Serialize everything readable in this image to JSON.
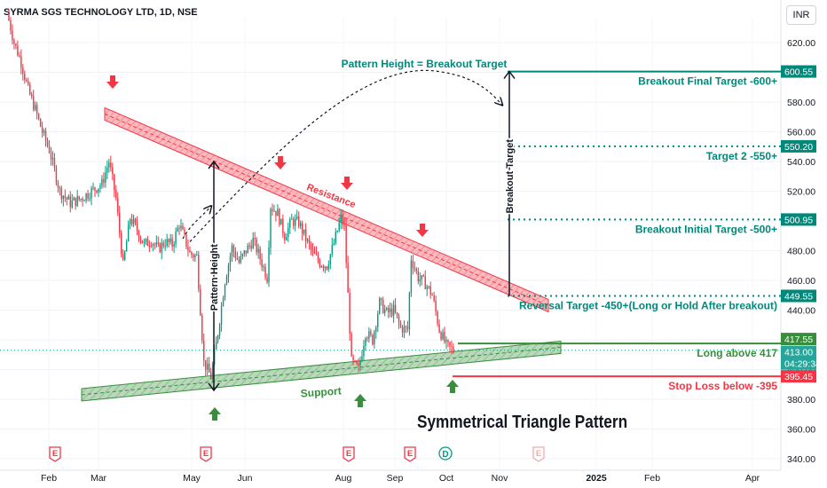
{
  "header": {
    "symbol": "SYRMA SGS TECHNOLOGY LTD, 1D, NSE",
    "currency": "INR"
  },
  "chart_data": {
    "type": "candlestick",
    "title": "Symmetrical Triangle Pattern",
    "x_ticks": [
      "Feb",
      "Mar",
      "May",
      "Jun",
      "Aug",
      "Sep",
      "Oct",
      "Nov",
      "2025",
      "Feb",
      "Apr"
    ],
    "y_ticks": [
      620.0,
      600.0,
      580.0,
      560.0,
      540.0,
      520.0,
      500.0,
      480.0,
      460.0,
      440.0,
      420.0,
      400.0,
      380.0,
      360.0,
      340.0
    ],
    "ylim": [
      334,
      646
    ],
    "price_path": [
      [
        0,
        640
      ],
      [
        4,
        620
      ],
      [
        8,
        607
      ],
      [
        12,
        588
      ],
      [
        16,
        575
      ],
      [
        20,
        560
      ],
      [
        24,
        548
      ],
      [
        30,
        520
      ],
      [
        36,
        512
      ],
      [
        42,
        515
      ],
      [
        48,
        520
      ],
      [
        54,
        525
      ],
      [
        58,
        540
      ],
      [
        62,
        515
      ],
      [
        66,
        470
      ],
      [
        70,
        502
      ],
      [
        74,
        494
      ],
      [
        78,
        484
      ],
      [
        82,
        487
      ],
      [
        86,
        481
      ],
      [
        90,
        486
      ],
      [
        94,
        484
      ],
      [
        98,
        498
      ],
      [
        104,
        478
      ],
      [
        108,
        476
      ],
      [
        112,
        405
      ],
      [
        116,
        395
      ],
      [
        120,
        425
      ],
      [
        124,
        460
      ],
      [
        128,
        482
      ],
      [
        132,
        472
      ],
      [
        136,
        480
      ],
      [
        140,
        487
      ],
      [
        144,
        475
      ],
      [
        148,
        462
      ],
      [
        150,
        510
      ],
      [
        154,
        505
      ],
      [
        158,
        490
      ],
      [
        162,
        500
      ],
      [
        166,
        499
      ],
      [
        170,
        488
      ],
      [
        174,
        478
      ],
      [
        178,
        472
      ],
      [
        182,
        470
      ],
      [
        186,
        485
      ],
      [
        190,
        502
      ],
      [
        192,
        495
      ],
      [
        196,
        405
      ],
      [
        200,
        400
      ],
      [
        204,
        425
      ],
      [
        208,
        420
      ],
      [
        212,
        445
      ],
      [
        216,
        438
      ],
      [
        220,
        440
      ],
      [
        224,
        428
      ],
      [
        228,
        427
      ],
      [
        230,
        475
      ],
      [
        234,
        462
      ],
      [
        238,
        458
      ],
      [
        242,
        450
      ],
      [
        246,
        427
      ],
      [
        250,
        416
      ],
      [
        254,
        413
      ]
    ],
    "tick_volatility": 5,
    "annotations": [
      "Pattern Height = Breakout Target",
      "Breakout Final Target -600+",
      "Target 2 -550+",
      "Breakout Initial Target -500+",
      "Reversal Target -450+(Long or Hold After breakout)",
      "Long above 417",
      "Stop Loss below -395",
      "Resistance",
      "Support",
      "Pattern Height",
      "Breakout Target"
    ],
    "price_labels": [
      {
        "text": "600.55",
        "value": 600.55,
        "color": "#00897b"
      },
      {
        "text": "550.20",
        "value": 550.2,
        "color": "#00897b"
      },
      {
        "text": "500.95",
        "value": 500.95,
        "color": "#00897b"
      },
      {
        "text": "449.55",
        "value": 449.55,
        "color": "#00897b"
      },
      {
        "text": "417.55",
        "value": 417.55,
        "color": "#388e3c"
      },
      {
        "text": "413.00",
        "value": 413,
        "color": "#26a69a"
      },
      {
        "text": "04:29:34",
        "value": 413,
        "color": "#26a69a"
      },
      {
        "text": "395.45",
        "value": 395.45,
        "color": "#f23645"
      }
    ],
    "event_markers": [
      "E",
      "E",
      "E",
      "E",
      "D",
      "E"
    ],
    "colors": {
      "up": "#089981",
      "down": "#f23645",
      "resistance": "#f23645",
      "support": "#388e3c",
      "target": "#00897b",
      "stop": "#f23645",
      "long": "#388e3c"
    }
  }
}
